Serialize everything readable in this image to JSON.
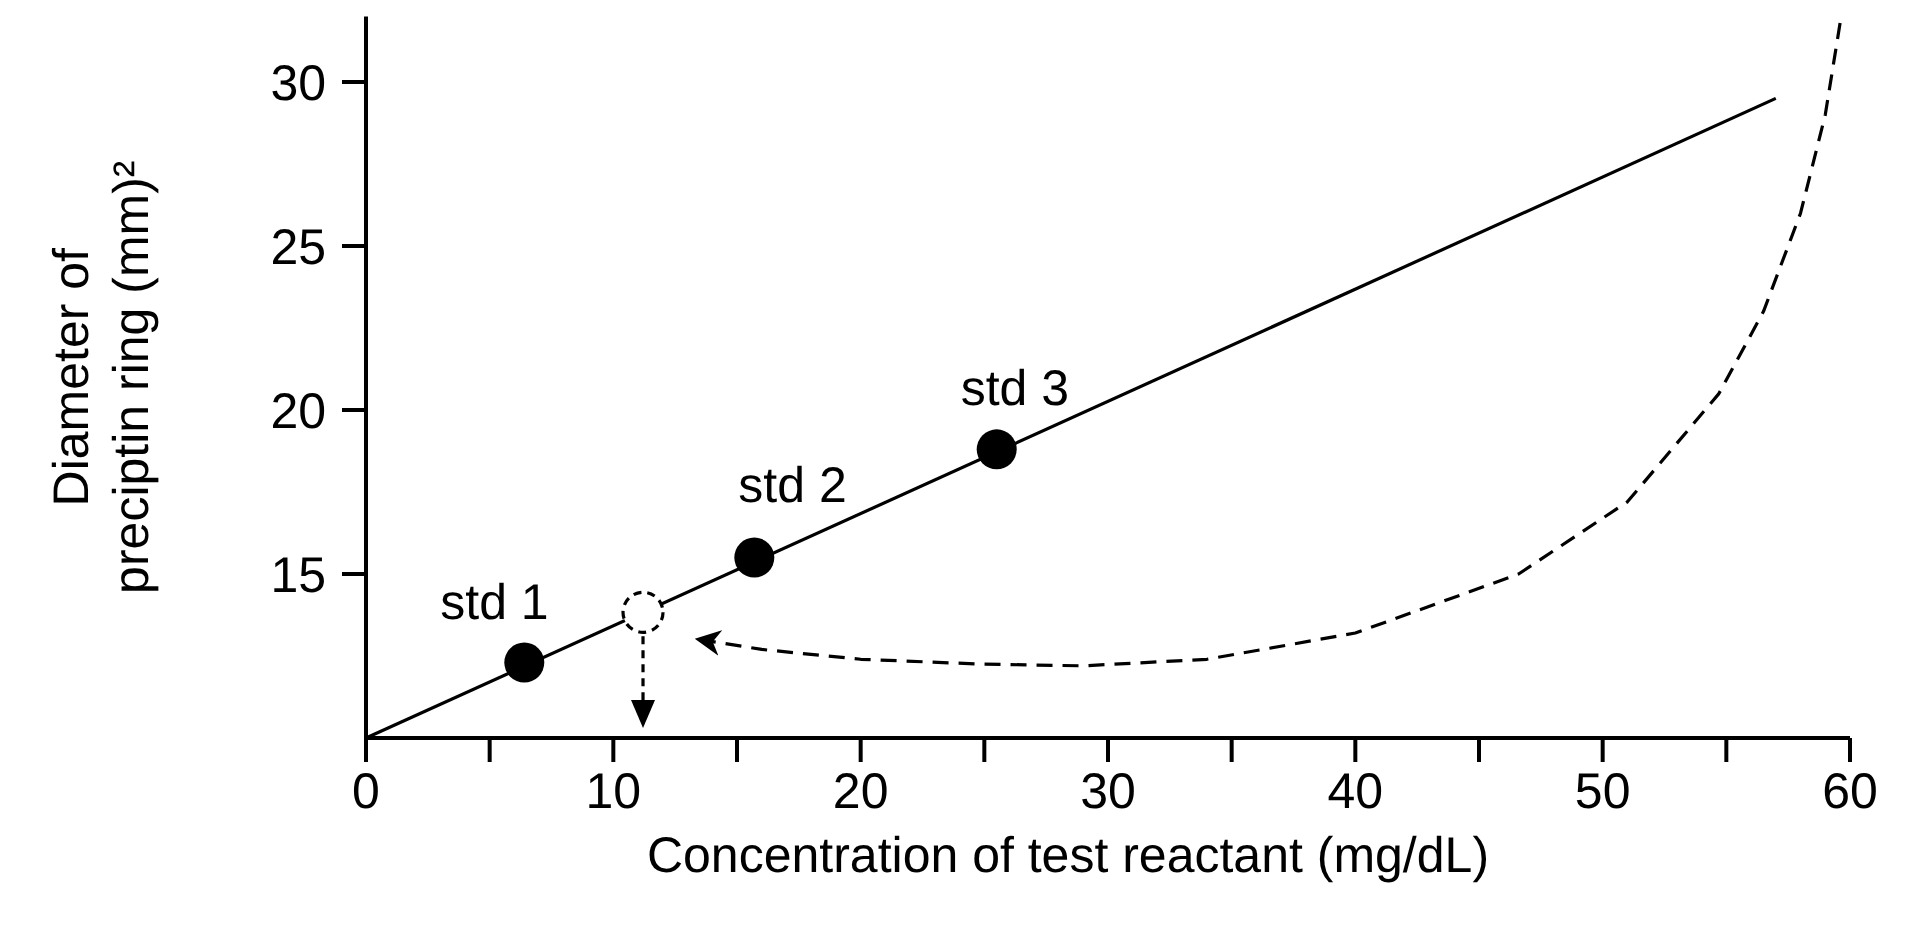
{
  "chart_data": {
    "type": "scatter",
    "xlabel": "Concentration of test reactant (mg/dL)",
    "ylabel": "Diameter of\npreciptin ring (mm)²",
    "xlim": [
      0,
      60
    ],
    "ylim": [
      10,
      32
    ],
    "xticks": [
      0,
      {
        "value": 5,
        "label": null
      },
      10,
      {
        "value": 15,
        "label": null
      },
      20,
      {
        "value": 25,
        "label": null
      },
      30,
      {
        "value": 35,
        "label": null
      },
      40,
      {
        "value": 45,
        "label": null
      },
      50,
      {
        "value": 55,
        "label": null
      },
      60
    ],
    "yticks": [
      15,
      20,
      25,
      30
    ],
    "grid": false,
    "series": [
      {
        "type": "line",
        "color": "#000000",
        "line_style": "solid",
        "marker": "none",
        "x": [
          0,
          57
        ],
        "values": [
          10,
          29.5
        ]
      },
      {
        "type": "line",
        "color": "#000000",
        "line_style": "dashed",
        "marker": "none",
        "x": [
          13.5,
          16,
          20,
          25,
          29,
          34,
          40,
          46.6,
          51,
          54.7,
          56.5,
          58,
          59,
          59.6
        ],
        "values": [
          13,
          12.7,
          12.4,
          12.25,
          12.2,
          12.4,
          13.2,
          15,
          17.2,
          20.5,
          23,
          26,
          29,
          31.8
        ]
      },
      {
        "color": "#000000",
        "marker": "circle",
        "x": [
          6.4,
          15.7,
          25.5
        ],
        "values": [
          12.3,
          15.5,
          18.8
        ]
      }
    ],
    "annotations": [
      {
        "text": "std 1",
        "x": 6.4,
        "y": 12.3
      },
      {
        "text": "std 2",
        "x": 15.7,
        "y": 15.5
      },
      {
        "text": "std 3",
        "x": 25.5,
        "y": 18.8
      }
    ]
  }
}
